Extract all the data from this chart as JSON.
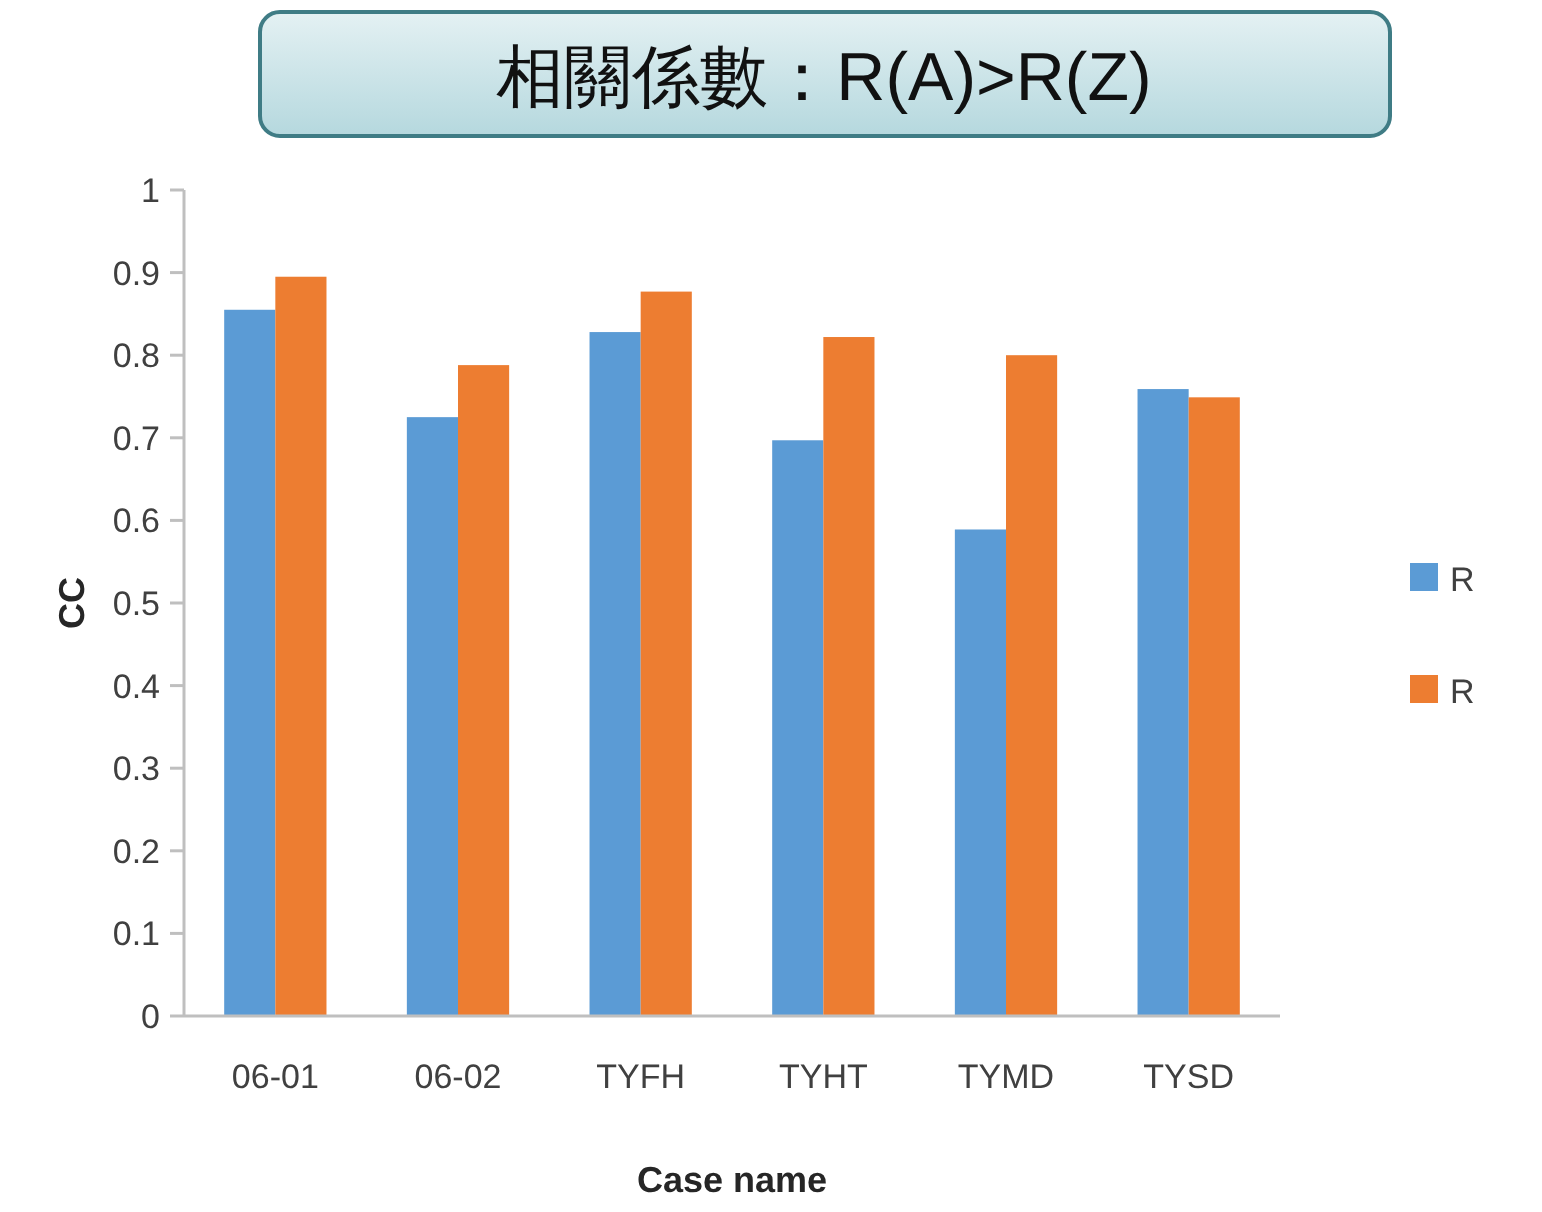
{
  "chart_data": {
    "type": "bar",
    "title": "相關係數：R(A)>R(Z)",
    "xlabel": "Case name",
    "ylabel": "CC",
    "categories": [
      "06-01",
      "06-02",
      "TYFH",
      "TYHT",
      "TYMD",
      "TYSD"
    ],
    "series": [
      {
        "name": "R",
        "color": "#5b9bd5",
        "values": [
          0.855,
          0.725,
          0.828,
          0.697,
          0.589,
          0.759
        ]
      },
      {
        "name": "R",
        "color": "#ed7d31",
        "values": [
          0.895,
          0.788,
          0.877,
          0.822,
          0.8,
          0.749
        ]
      }
    ],
    "ylim": [
      0,
      1
    ],
    "yticks": [
      0,
      0.1,
      0.2,
      0.3,
      0.4,
      0.5,
      0.6,
      0.7,
      0.8,
      0.9,
      1
    ],
    "grid": false,
    "legend": "right"
  }
}
